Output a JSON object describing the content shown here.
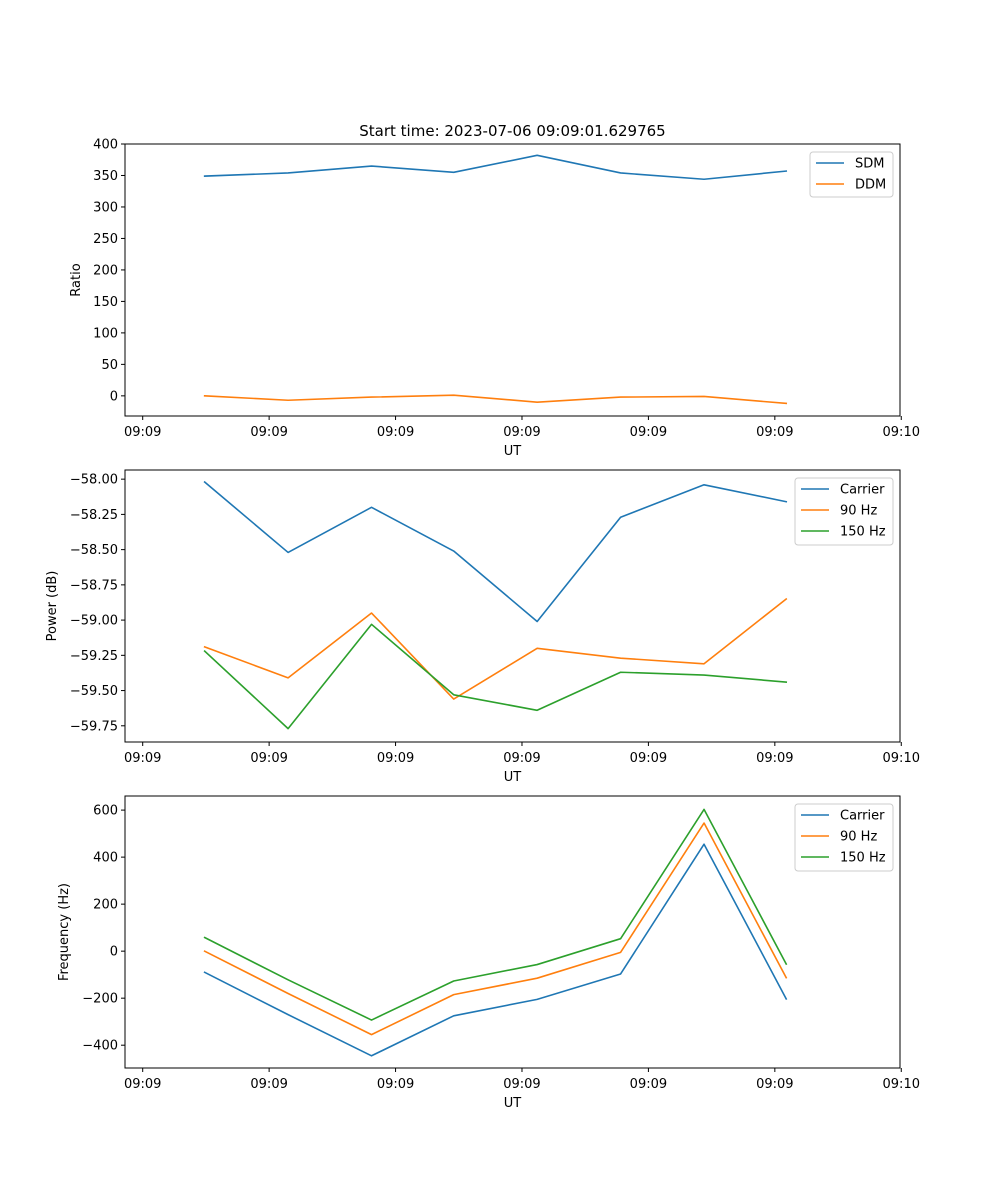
{
  "figure_title": "Start time: 2023-07-06 09:09:01.629765",
  "colors": {
    "blue": "#1f77b4",
    "orange": "#ff7f0e",
    "green": "#2ca02c"
  },
  "chart_data": [
    {
      "type": "line",
      "title": "Start time: 2023-07-06 09:09:01.629765",
      "xlabel": "UT",
      "ylabel": "Ratio",
      "x_tick_labels": [
        "09:09",
        "09:09",
        "09:09",
        "09:09",
        "09:09",
        "09:09",
        "09:10"
      ],
      "x_ticks": [
        0,
        1,
        2,
        3,
        4,
        5,
        6
      ],
      "xlim": [
        -0.14,
        5.99
      ],
      "x": [
        0.49,
        1.15,
        1.81,
        2.46,
        3.12,
        3.78,
        4.44,
        5.09
      ],
      "ylim": [
        -32,
        400
      ],
      "y_ticks": [
        0,
        50,
        100,
        150,
        200,
        250,
        300,
        350,
        400
      ],
      "legend_position": "top-right",
      "series": [
        {
          "name": "SDM",
          "color": "#1f77b4",
          "values": [
            349,
            354,
            365,
            355,
            382,
            354,
            344,
            357
          ]
        },
        {
          "name": "DDM",
          "color": "#ff7f0e",
          "values": [
            0,
            -7,
            -2,
            1,
            -10,
            -2,
            -1,
            -12
          ]
        }
      ]
    },
    {
      "type": "line",
      "title": "",
      "xlabel": "UT",
      "ylabel": "Power (dB)",
      "x_tick_labels": [
        "09:09",
        "09:09",
        "09:09",
        "09:09",
        "09:09",
        "09:09",
        "09:10"
      ],
      "x_ticks": [
        0,
        1,
        2,
        3,
        4,
        5,
        6
      ],
      "xlim": [
        -0.14,
        5.99
      ],
      "x": [
        0.49,
        1.15,
        1.81,
        2.46,
        3.12,
        3.78,
        4.44,
        5.09
      ],
      "ylim": [
        -59.865,
        -57.935
      ],
      "y_ticks": [
        -59.75,
        -59.5,
        -59.25,
        -59.0,
        -58.75,
        -58.5,
        -58.25,
        -58.0
      ],
      "y_tick_labels": [
        "−59.75",
        "−59.50",
        "−59.25",
        "−59.00",
        "−58.75",
        "−58.50",
        "−58.25",
        "−58.00"
      ],
      "legend_position": "top-right",
      "series": [
        {
          "name": "Carrier",
          "color": "#1f77b4",
          "values": [
            -58.02,
            -58.52,
            -58.2,
            -58.51,
            -59.01,
            -58.27,
            -58.04,
            -58.16
          ]
        },
        {
          "name": "90 Hz",
          "color": "#ff7f0e",
          "values": [
            -59.19,
            -59.41,
            -58.95,
            -59.56,
            -59.2,
            -59.27,
            -59.31,
            -58.85
          ]
        },
        {
          "name": "150 Hz",
          "color": "#2ca02c",
          "values": [
            -59.22,
            -59.77,
            -59.03,
            -59.53,
            -59.64,
            -59.37,
            -59.39,
            -59.44
          ]
        }
      ]
    },
    {
      "type": "line",
      "title": "",
      "xlabel": "UT",
      "ylabel": "Frequency (Hz)",
      "x_tick_labels": [
        "09:09",
        "09:09",
        "09:09",
        "09:09",
        "09:09",
        "09:09",
        "09:10"
      ],
      "x_ticks": [
        0,
        1,
        2,
        3,
        4,
        5,
        6
      ],
      "xlim": [
        -0.14,
        5.99
      ],
      "x": [
        0.49,
        1.15,
        1.81,
        2.46,
        3.12,
        3.78,
        4.44,
        5.09
      ],
      "ylim": [
        -497,
        660
      ],
      "y_ticks": [
        -400,
        -200,
        0,
        200,
        400,
        600
      ],
      "y_tick_labels": [
        "−400",
        "−200",
        "0",
        "200",
        "400",
        "600"
      ],
      "legend_position": "top-right",
      "series": [
        {
          "name": "Carrier",
          "color": "#1f77b4",
          "values": [
            -90,
            -270,
            -445,
            -275,
            -205,
            -97,
            455,
            -203
          ]
        },
        {
          "name": "90 Hz",
          "color": "#ff7f0e",
          "values": [
            0,
            -180,
            -355,
            -185,
            -115,
            -5,
            545,
            -113
          ]
        },
        {
          "name": "150 Hz",
          "color": "#2ca02c",
          "values": [
            58,
            -122,
            -293,
            -127,
            -57,
            53,
            603,
            -55
          ]
        }
      ]
    }
  ]
}
